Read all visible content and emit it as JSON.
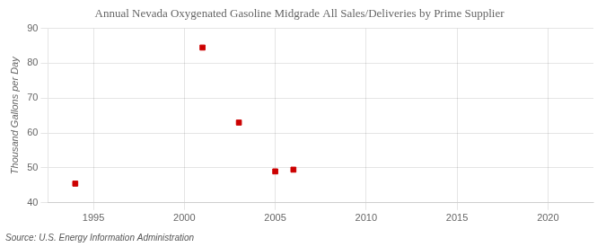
{
  "chart_data": {
    "type": "scatter",
    "title": "Annual Nevada Oxygenated Gasoline Midgrade All Sales/Deliveries by Prime Supplier",
    "y_label": "Thousand Gallons per Day",
    "annotation": "Source: U.S. Energy Information Administration",
    "x": [
      1994,
      2001,
      2003,
      2005,
      2006
    ],
    "values": [
      45.5,
      84.5,
      63.0,
      49.0,
      49.5
    ],
    "color": "#cc0000",
    "marker": "square",
    "xlim": [
      1992.5,
      2022.5
    ],
    "xticks": [
      1995,
      2000,
      2005,
      2010,
      2015,
      2020
    ],
    "ylim": [
      40,
      90
    ],
    "yticks": [
      40,
      50,
      60,
      70,
      80,
      90
    ],
    "grid": true
  }
}
